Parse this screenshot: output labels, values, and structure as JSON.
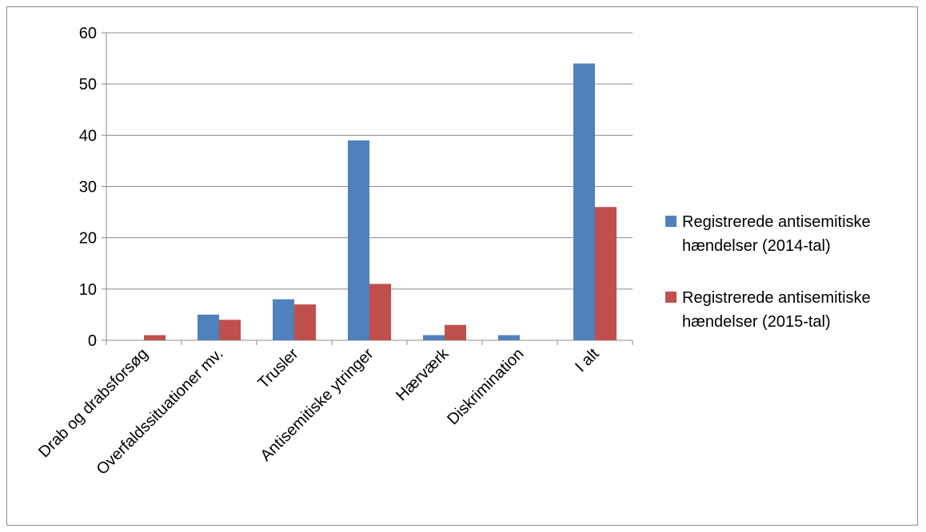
{
  "chart_data": {
    "type": "bar",
    "categories": [
      "Drab og drabsforsøg",
      "Overfaldssituationer mv.",
      "Trusler",
      "Antisemitiske ytringer",
      "Hærværk",
      "Diskrimination",
      "I alt"
    ],
    "series": [
      {
        "name_lines": [
          "Registrerede antisemitiske",
          "hændelser (2014-tal)"
        ],
        "color": "#4f81bd",
        "values": [
          0,
          5,
          8,
          39,
          1,
          1,
          54
        ]
      },
      {
        "name_lines": [
          "Registrerede antisemitiske",
          "hændelser (2015-tal)"
        ],
        "color": "#c0504d",
        "values": [
          1,
          4,
          7,
          11,
          3,
          0,
          26
        ]
      }
    ],
    "ylim": [
      0,
      60
    ],
    "yticks": [
      0,
      10,
      20,
      30,
      40,
      50,
      60
    ],
    "grid": true,
    "legend_position": "right"
  }
}
